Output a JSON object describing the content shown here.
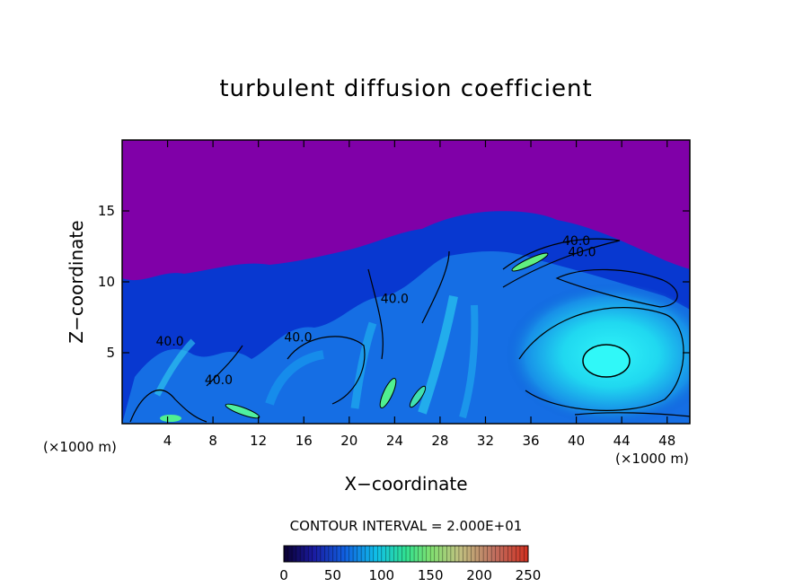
{
  "chart_data": {
    "type": "heatmap",
    "title": "turbulent diffusion coefficient",
    "xlabel": "X−coordinate",
    "ylabel": "Z−coordinate",
    "x_unit": "(×1000 m)",
    "x_ticks": [
      4,
      8,
      12,
      16,
      20,
      24,
      28,
      32,
      36,
      40,
      44,
      48
    ],
    "y_ticks": [
      5,
      10,
      15
    ],
    "xlim": [
      0,
      50
    ],
    "ylim": [
      0,
      20
    ],
    "contour_interval_text": "CONTOUR INTERVAL = 2.000E+01",
    "contour_labels": [
      {
        "text": "40.0",
        "x": 40,
        "z": 12.6
      },
      {
        "text": "40.0",
        "x": 40.5,
        "z": 11.8
      },
      {
        "text": "40.0",
        "x": 24,
        "z": 8.5
      },
      {
        "text": "40.0",
        "x": 15.5,
        "z": 5.8
      },
      {
        "text": "40.0",
        "x": 4.2,
        "z": 5.5
      },
      {
        "text": "40.0",
        "x": 8.5,
        "z": 2.8
      }
    ],
    "colorbar": {
      "min": 0,
      "max": 250,
      "ticks": [
        0,
        50,
        100,
        150,
        200,
        250
      ],
      "colors": [
        "#0a0030",
        "#1a1aa0",
        "#1060e0",
        "#10c0e8",
        "#30e090",
        "#80e070",
        "#c0c080",
        "#c07060",
        "#d03020"
      ]
    },
    "colors": {
      "background": "#8000a8",
      "low": "#0020c0",
      "mid": "#1890f0",
      "high": "#20e8f0",
      "max": "#60f090"
    }
  }
}
